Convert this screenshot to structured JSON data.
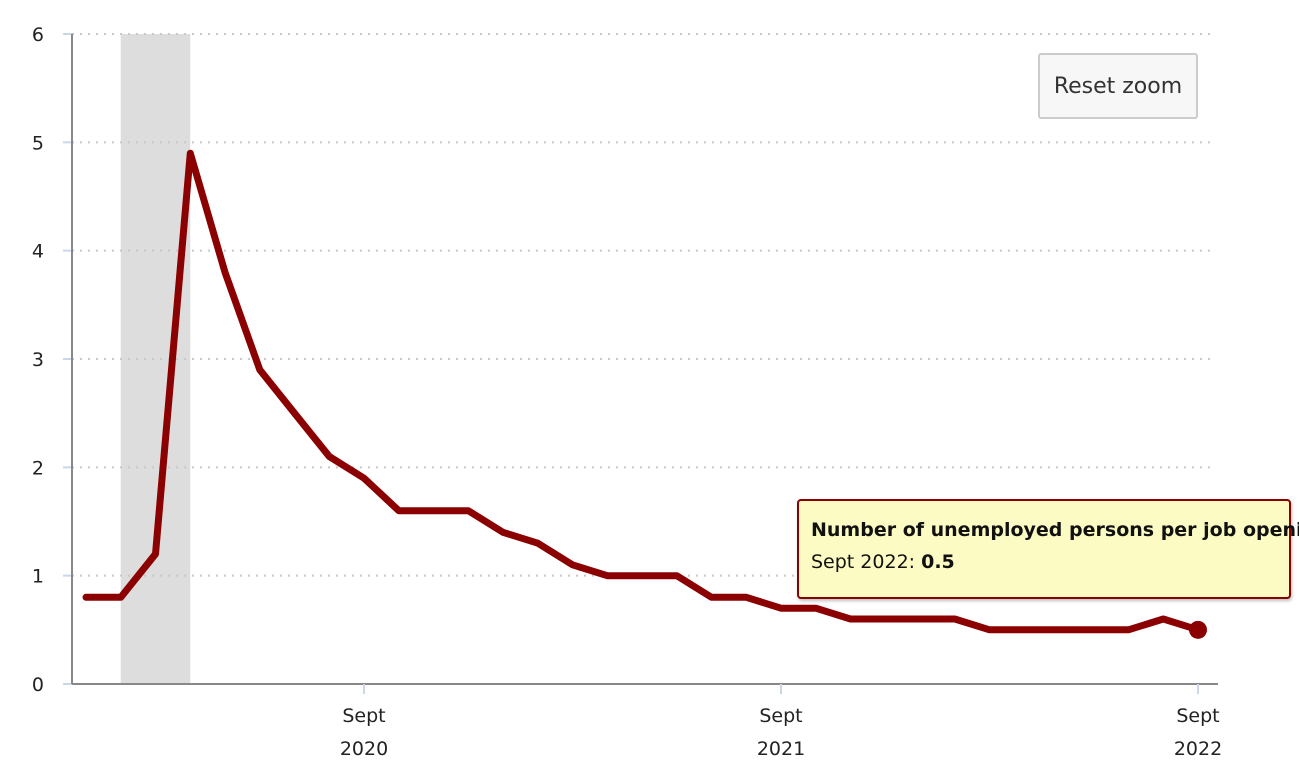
{
  "chart_data": {
    "type": "line",
    "series": [
      {
        "name": "Number of unemployed persons per job opening",
        "color": "#8b0000",
        "x": [
          "2020-01",
          "2020-02",
          "2020-03",
          "2020-04",
          "2020-05",
          "2020-06",
          "2020-07",
          "2020-08",
          "2020-09",
          "2020-10",
          "2020-11",
          "2020-12",
          "2021-01",
          "2021-02",
          "2021-03",
          "2021-04",
          "2021-05",
          "2021-06",
          "2021-07",
          "2021-08",
          "2021-09",
          "2021-10",
          "2021-11",
          "2021-12",
          "2022-01",
          "2022-02",
          "2022-03",
          "2022-04",
          "2022-05",
          "2022-06",
          "2022-07",
          "2022-08",
          "2022-09"
        ],
        "values": [
          0.8,
          0.8,
          1.2,
          4.9,
          3.8,
          2.9,
          2.5,
          2.1,
          1.9,
          1.6,
          1.6,
          1.6,
          1.4,
          1.3,
          1.1,
          1.0,
          1.0,
          1.0,
          0.8,
          0.8,
          0.7,
          0.7,
          0.6,
          0.6,
          0.6,
          0.6,
          0.5,
          0.5,
          0.5,
          0.5,
          0.5,
          0.6,
          0.5
        ]
      }
    ],
    "xlim": [
      "2020-01",
      "2022-09"
    ],
    "ylim": [
      0,
      6
    ],
    "y_ticks": [
      "0",
      "1",
      "2",
      "3",
      "4",
      "5",
      "6"
    ],
    "x_ticks": [
      {
        "month": "Sept",
        "year": "2020",
        "at": "2020-09"
      },
      {
        "month": "Sept",
        "year": "2021",
        "at": "2021-09"
      },
      {
        "month": "Sept",
        "year": "2022",
        "at": "2022-09"
      }
    ],
    "shaded_band": {
      "from": "2020-02",
      "to": "2020-04",
      "color": "#dddddd"
    },
    "grid": true,
    "grid_style": "dotted horizontal"
  },
  "reset_zoom": {
    "label": "Reset zoom"
  },
  "tooltip": {
    "title": "Number of unemployed persons per job opening",
    "label": "Sept 2022",
    "value": "0.5",
    "point": "2022-09"
  }
}
